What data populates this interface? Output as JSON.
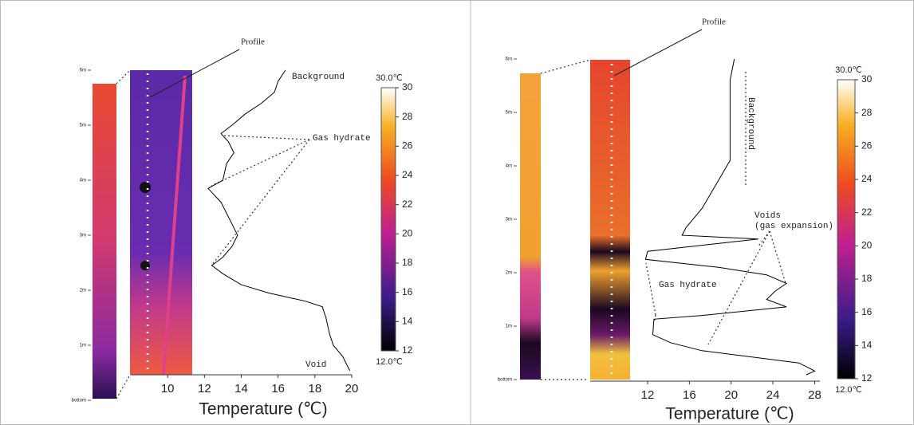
{
  "chart_data": [
    {
      "type": "line",
      "xlabel": "Temperature (℃)",
      "xlim": [
        8,
        20
      ],
      "xticks": [
        10,
        12,
        14,
        16,
        18,
        20
      ],
      "ylim": [
        0,
        6
      ],
      "yticks": [
        {
          "value": 0,
          "label": "bottom"
        },
        {
          "value": 1,
          "label": "1m"
        },
        {
          "value": 2,
          "label": "2m"
        },
        {
          "value": 3,
          "label": "3m"
        },
        {
          "value": 4,
          "label": "4m"
        },
        {
          "value": 5,
          "label": "5m"
        },
        {
          "value": 6,
          "label": "6m"
        }
      ],
      "x": [
        6.0,
        5.8,
        5.6,
        5.4,
        5.2,
        5.0,
        4.85,
        4.7,
        4.5,
        4.3,
        4.0,
        3.85,
        3.6,
        3.4,
        3.2,
        3.0,
        2.8,
        2.6,
        2.45,
        2.3,
        2.1,
        1.95,
        1.8,
        1.7,
        1.5,
        1.2,
        1.0,
        0.8,
        0.6,
        0.54
      ],
      "values": [
        16.4,
        16.0,
        15.8,
        15.1,
        14.2,
        13.5,
        12.9,
        13.3,
        13.6,
        13.2,
        13.0,
        12.2,
        12.9,
        13.2,
        13.5,
        13.8,
        13.5,
        13.0,
        12.4,
        13.0,
        14.0,
        15.5,
        17.5,
        18.4,
        18.6,
        18.8,
        19.0,
        19.5,
        19.8,
        19.9
      ],
      "color": "#000000",
      "colorbar": {
        "lim": [
          12,
          30
        ],
        "ticks": [
          12,
          14,
          16,
          18,
          20,
          22,
          24,
          26,
          28,
          30
        ],
        "max_label": "30.0℃",
        "min_label": "12.0℃"
      },
      "annotations": [
        "Profile",
        "Background",
        "Gas hydrate",
        "Void"
      ]
    },
    {
      "type": "line",
      "xlabel": "Temperature (℃)",
      "xlim": [
        6.5,
        28.5
      ],
      "xticks": [
        12,
        16,
        20,
        24,
        28
      ],
      "ylim": [
        0,
        6
      ],
      "yticks": [
        {
          "value": 0,
          "label": "bottom"
        },
        {
          "value": 1,
          "label": "1m"
        },
        {
          "value": 2,
          "label": "2m"
        },
        {
          "value": 3,
          "label": "3m"
        },
        {
          "value": 4,
          "label": "4m"
        },
        {
          "value": 5,
          "label": "5m"
        },
        {
          "value": 6,
          "label": "6m"
        }
      ],
      "x": [
        6.0,
        5.6,
        4.1,
        3.2,
        2.85,
        2.7,
        2.63,
        2.4,
        2.25,
        2.1,
        1.96,
        1.8,
        1.65,
        1.5,
        1.36,
        1.2,
        1.13,
        0.84,
        0.69,
        0.54,
        0.31,
        0.16,
        0.09
      ],
      "values": [
        20.3,
        19.9,
        19.9,
        17.2,
        15.7,
        15.3,
        22.6,
        12.0,
        11.8,
        18.8,
        23.4,
        25.3,
        24.2,
        23.4,
        25.3,
        17.2,
        12.6,
        12.5,
        14.2,
        17.2,
        26.5,
        28.0,
        27.2
      ],
      "color": "#000000",
      "colorbar": {
        "lim": [
          12,
          30
        ],
        "ticks": [
          12,
          14,
          16,
          18,
          20,
          22,
          24,
          26,
          28,
          30
        ],
        "max_label": "30.0℃",
        "min_label": "12.0℃"
      },
      "annotations": [
        "Profile",
        "Background",
        "Voids",
        "(gas expansion)",
        "Gas hydrate"
      ]
    }
  ]
}
